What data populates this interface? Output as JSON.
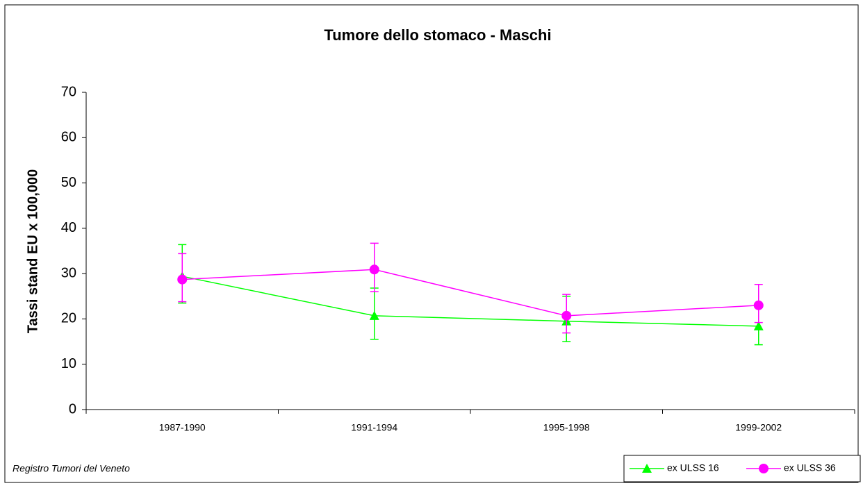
{
  "chart_data": {
    "type": "line",
    "title": "Tumore dello stomaco - Maschi",
    "y_label": "Tassi stand EU x 100,000",
    "note": "Registro Tumori del Veneto",
    "categories": [
      "1987-1990",
      "1991-1994",
      "1995-1998",
      "1999-2002"
    ],
    "series": [
      {
        "name": "ex ULSS 16",
        "color": "#00ff00",
        "marker": "triangle",
        "values": [
          29.4,
          20.7,
          19.5,
          18.4
        ],
        "ci_low": [
          23.5,
          15.5,
          15,
          14.3
        ],
        "ci_high": [
          36.4,
          26.8,
          25,
          22.5
        ]
      },
      {
        "name": "ex ULSS 36",
        "color": "#ff00ff",
        "marker": "circle",
        "values": [
          28.7,
          30.9,
          20.7,
          23
        ],
        "ci_low": [
          23.8,
          26,
          16.9,
          19.2
        ],
        "ci_high": [
          34.4,
          36.7,
          25.4,
          27.6
        ]
      }
    ],
    "ylim": [
      0,
      70
    ],
    "yticks": [
      0,
      10,
      20,
      30,
      40,
      50,
      60,
      70
    ],
    "legend": "bottom-right"
  }
}
